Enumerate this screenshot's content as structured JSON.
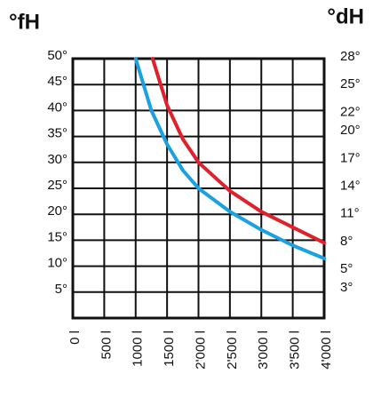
{
  "chart_data": {
    "type": "line",
    "y_title": "°fH",
    "y2_title": "°dH",
    "xlim": [
      0,
      4000
    ],
    "xticks": [
      {
        "value": 0,
        "label": "0 l"
      },
      {
        "value": 500,
        "label": "500 l"
      },
      {
        "value": 1000,
        "label": "1000 l"
      },
      {
        "value": 1500,
        "label": "1500 l"
      },
      {
        "value": 2000,
        "label": "2'000 l"
      },
      {
        "value": 2500,
        "label": "2'500 l"
      },
      {
        "value": 3000,
        "label": "3'000 l"
      },
      {
        "value": 3500,
        "label": "3'500 l"
      },
      {
        "value": 4000,
        "label": "4'000 l"
      }
    ],
    "ylim": [
      0,
      50
    ],
    "yticks": [
      {
        "value": 5,
        "label": "5°"
      },
      {
        "value": 10,
        "label": "10°"
      },
      {
        "value": 15,
        "label": "15°"
      },
      {
        "value": 20,
        "label": "20°"
      },
      {
        "value": 25,
        "label": "25°"
      },
      {
        "value": 30,
        "label": "30°"
      },
      {
        "value": 35,
        "label": "35°"
      },
      {
        "value": 40,
        "label": "40°"
      },
      {
        "value": 45,
        "label": "45°"
      },
      {
        "value": 50,
        "label": "50°"
      }
    ],
    "y2lim": [
      0,
      28.09
    ],
    "y2ticks": [
      {
        "value": 3,
        "label": "3°"
      },
      {
        "value": 5,
        "label": "5°"
      },
      {
        "value": 8,
        "label": "8°"
      },
      {
        "value": 11,
        "label": "11°"
      },
      {
        "value": 14,
        "label": "14°"
      },
      {
        "value": 17,
        "label": "17°"
      },
      {
        "value": 20,
        "label": "20°"
      },
      {
        "value": 22,
        "label": "22°"
      },
      {
        "value": 25,
        "label": "25°"
      },
      {
        "value": 28,
        "label": "28°"
      }
    ],
    "grid": true,
    "series": [
      {
        "color": "#1ba1e2",
        "x": [
          1000,
          1250,
          1500,
          1750,
          2000,
          2500,
          3000,
          3500,
          4000
        ],
        "values": [
          50,
          40,
          33.5,
          28.5,
          25,
          20.5,
          17,
          14,
          11.5
        ]
      },
      {
        "color": "#e0202a",
        "x": [
          1270,
          1500,
          1750,
          2000,
          2500,
          3000,
          3500,
          4000
        ],
        "values": [
          50,
          41,
          34.5,
          30,
          24.5,
          20.5,
          17.5,
          14.5
        ]
      }
    ]
  }
}
